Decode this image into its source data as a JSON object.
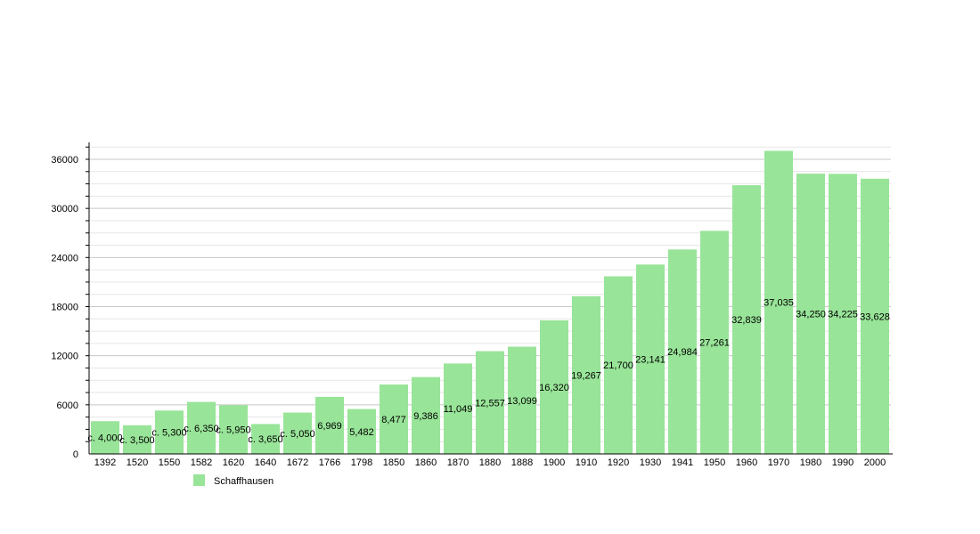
{
  "chart_data": {
    "type": "bar",
    "categories": [
      "1392",
      "1520",
      "1550",
      "1582",
      "1620",
      "1640",
      "1672",
      "1766",
      "1798",
      "1850",
      "1860",
      "1870",
      "1880",
      "1888",
      "1900",
      "1910",
      "1920",
      "1930",
      "1941",
      "1950",
      "1960",
      "1970",
      "1980",
      "1990",
      "2000"
    ],
    "series": [
      {
        "name": "Schaffhausen",
        "values": [
          4000,
          3500,
          5300,
          6350,
          5950,
          3650,
          5050,
          6969,
          5482,
          8477,
          9386,
          11049,
          12557,
          13099,
          16320,
          19267,
          21700,
          23141,
          24984,
          27261,
          32839,
          37035,
          34250,
          34225,
          33628
        ],
        "labels": [
          "c. 4,000",
          "c. 3,500",
          "c. 5,300",
          "c. 6,350",
          "c. 5,950",
          "c. 3,650",
          "c. 5,050",
          "6,969",
          "5,482",
          "8,477",
          "9,386",
          "11,049",
          "12,557",
          "13,099",
          "16,320",
          "19,267",
          "21,700",
          "23,141",
          "24,984",
          "27,261",
          "32,839",
          "37,035",
          "34,250",
          "34,225",
          "33,628"
        ],
        "color": "#98e498"
      }
    ],
    "yticks": [
      "0",
      "6000",
      "12000",
      "18000",
      "24000",
      "30000",
      "36000"
    ],
    "ylim": [
      0,
      38000
    ],
    "grid": true,
    "legend": "bottom-left",
    "title": "",
    "xlabel": "",
    "ylabel": ""
  }
}
